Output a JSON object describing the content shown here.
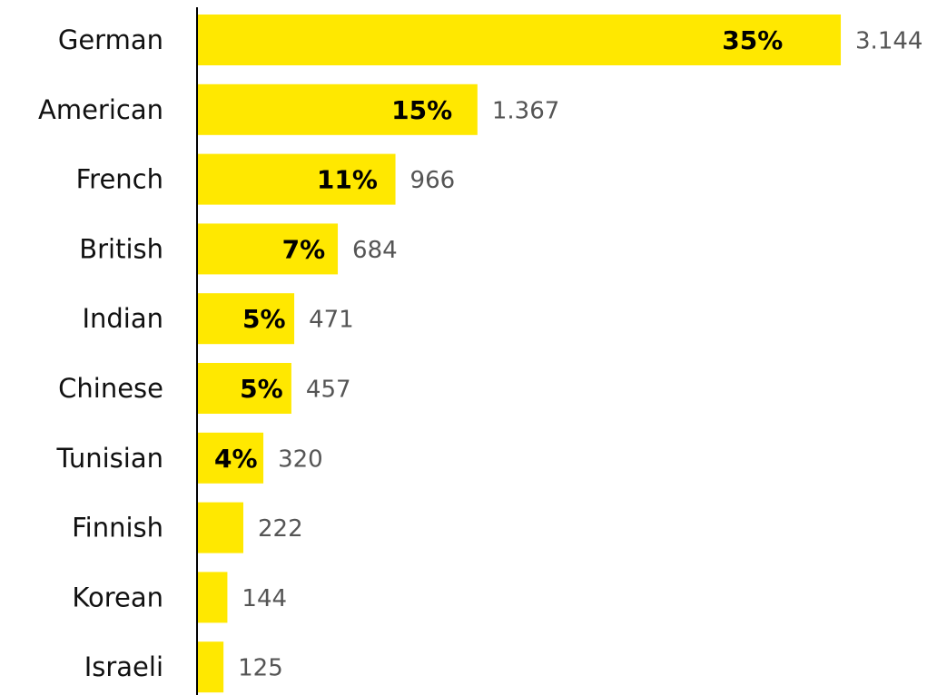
{
  "chart_data": {
    "type": "bar",
    "orientation": "horizontal",
    "categories": [
      "German",
      "American",
      "French",
      "British",
      "Indian",
      "Chinese",
      "Tunisian",
      "Finnish",
      "Korean",
      "Israeli"
    ],
    "values": [
      3144,
      1367,
      966,
      684,
      471,
      457,
      320,
      222,
      144,
      125
    ],
    "value_labels": [
      "3.144",
      "1.367",
      "966",
      "684",
      "471",
      "457",
      "320",
      "222",
      "144",
      "125"
    ],
    "percent_values": [
      35,
      15,
      11,
      7,
      5,
      5,
      4,
      null,
      null,
      null
    ],
    "percent_labels": [
      "35%",
      "15%",
      "11%",
      "7%",
      "5%",
      "5%",
      "4%",
      null,
      null,
      null
    ],
    "color": "#ffe800"
  }
}
